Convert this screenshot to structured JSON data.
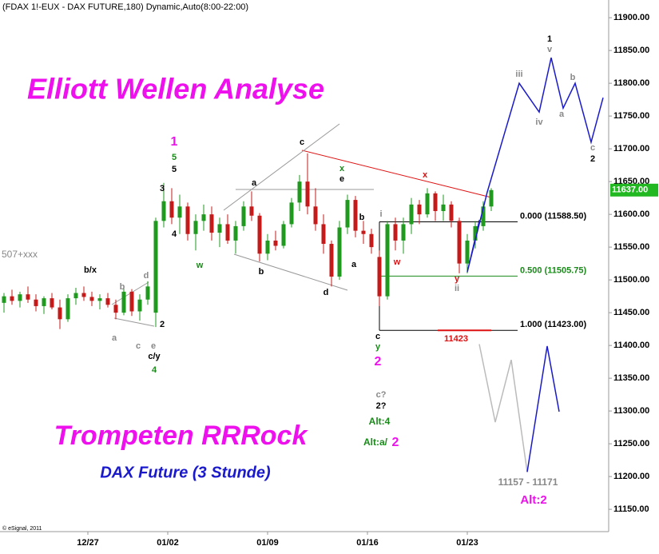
{
  "chart_data": {
    "type": "candlestick",
    "title": "(FDAX 1!-EUX - DAX FUTURE,180) Dynamic,Auto(8:00-22:00)",
    "headline": "Elliott Wellen Analyse",
    "footline": "Trompeten RRRock",
    "subtitle": "DAX Future (3 Stunde)",
    "copyright": "© eSignal, 2011",
    "side_note": "507+xxx",
    "up_color": "#1f9a1f",
    "down_color": "#c41a1a",
    "xlim": [
      0,
      152.4
    ],
    "ylim": [
      11116,
      11927
    ],
    "xticks": [
      {
        "value": 22,
        "label": "12/27"
      },
      {
        "value": 42,
        "label": "01/02"
      },
      {
        "value": 67,
        "label": "01/09"
      },
      {
        "value": 92,
        "label": "01/16"
      },
      {
        "value": 117,
        "label": "01/23"
      }
    ],
    "yticks": [
      {
        "value": 11150,
        "label": "11150.00"
      },
      {
        "value": 11200,
        "label": "11200.00"
      },
      {
        "value": 11250,
        "label": "11250.00"
      },
      {
        "value": 11300,
        "label": "11300.00"
      },
      {
        "value": 11350,
        "label": "11350.00"
      },
      {
        "value": 11400,
        "label": "11400.00"
      },
      {
        "value": 11450,
        "label": "11450.00"
      },
      {
        "value": 11500,
        "label": "11500.00"
      },
      {
        "value": 11550,
        "label": "11550.00"
      },
      {
        "value": 11600,
        "label": "11600.00"
      },
      {
        "value": 11650,
        "label": "11650.00"
      },
      {
        "value": 11700,
        "label": "11700.00"
      },
      {
        "value": 11750,
        "label": "11750.00"
      },
      {
        "value": 11800,
        "label": "11800.00"
      },
      {
        "value": 11850,
        "label": "11850.00"
      },
      {
        "value": 11900,
        "label": "11900.00"
      }
    ],
    "last": {
      "value": 11637,
      "label": "11637.00",
      "color": "#22b822"
    },
    "levels": [
      {
        "value": 11588.5,
        "label": "0.000 (11588.50)",
        "color": "#000000"
      },
      {
        "value": 11505.75,
        "label": "0.500 (11505.75)",
        "color": "#1a8a1a"
      },
      {
        "value": 11423,
        "label": "1.000 (11423.00)",
        "color": "#000000"
      }
    ],
    "target": {
      "value": 11423,
      "label": "11423",
      "color": "#dd1111"
    },
    "candles": [
      [
        1,
        11465,
        11480,
        11450,
        11475
      ],
      [
        3,
        11475,
        11485,
        11462,
        11468
      ],
      [
        5,
        11468,
        11482,
        11458,
        11478
      ],
      [
        7,
        11478,
        11490,
        11465,
        11470
      ],
      [
        9,
        11470,
        11478,
        11452,
        11460
      ],
      [
        11,
        11460,
        11475,
        11448,
        11472
      ],
      [
        13,
        11472,
        11480,
        11455,
        11458
      ],
      [
        15,
        11458,
        11470,
        11425,
        11440
      ],
      [
        17,
        11440,
        11478,
        11436,
        11472
      ],
      [
        19,
        11472,
        11488,
        11462,
        11480
      ],
      [
        21,
        11480,
        11490,
        11468,
        11474
      ],
      [
        23,
        11474,
        11482,
        11460,
        11468
      ],
      [
        25,
        11468,
        11478,
        11455,
        11472
      ],
      [
        27,
        11472,
        11480,
        11458,
        11462
      ],
      [
        29,
        11462,
        11470,
        11440,
        11450
      ],
      [
        31,
        11450,
        11488,
        11446,
        11482
      ],
      [
        33,
        11482,
        11486,
        11445,
        11452
      ],
      [
        35,
        11452,
        11478,
        11438,
        11470
      ],
      [
        37,
        11470,
        11498,
        11462,
        11490
      ],
      [
        39,
        11450,
        11595,
        11428,
        11590
      ],
      [
        41,
        11590,
        11648,
        11580,
        11620
      ],
      [
        43,
        11620,
        11640,
        11585,
        11595
      ],
      [
        45,
        11595,
        11630,
        11570,
        11612
      ],
      [
        47,
        11612,
        11618,
        11560,
        11570
      ],
      [
        49,
        11570,
        11600,
        11545,
        11590
      ],
      [
        51,
        11590,
        11615,
        11575,
        11600
      ],
      [
        53,
        11600,
        11612,
        11560,
        11572
      ],
      [
        55,
        11572,
        11595,
        11550,
        11585
      ],
      [
        57,
        11585,
        11600,
        11555,
        11560
      ],
      [
        59,
        11560,
        11590,
        11540,
        11582
      ],
      [
        61,
        11582,
        11620,
        11575,
        11612
      ],
      [
        63,
        11612,
        11635,
        11590,
        11598
      ],
      [
        65,
        11598,
        11602,
        11528,
        11540
      ],
      [
        67,
        11540,
        11570,
        11530,
        11560
      ],
      [
        69,
        11560,
        11575,
        11545,
        11552
      ],
      [
        71,
        11552,
        11590,
        11548,
        11585
      ],
      [
        73,
        11585,
        11625,
        11580,
        11618
      ],
      [
        75,
        11618,
        11660,
        11605,
        11650
      ],
      [
        77,
        11650,
        11693,
        11600,
        11612
      ],
      [
        79,
        11612,
        11640,
        11575,
        11585
      ],
      [
        81,
        11585,
        11600,
        11540,
        11555
      ],
      [
        83,
        11555,
        11560,
        11490,
        11505
      ],
      [
        85,
        11505,
        11590,
        11500,
        11580
      ],
      [
        87,
        11580,
        11630,
        11570,
        11622
      ],
      [
        89,
        11622,
        11628,
        11565,
        11575
      ],
      [
        91,
        11575,
        11590,
        11555,
        11570
      ],
      [
        93,
        11570,
        11578,
        11540,
        11550
      ],
      [
        95,
        11535,
        11545,
        11460,
        11475
      ],
      [
        97,
        11475,
        11590,
        11470,
        11585
      ],
      [
        99,
        11585,
        11595,
        11545,
        11560
      ],
      [
        101,
        11560,
        11595,
        11540,
        11585
      ],
      [
        103,
        11585,
        11625,
        11570,
        11615
      ],
      [
        105,
        11615,
        11622,
        11585,
        11600
      ],
      [
        107,
        11600,
        11640,
        11595,
        11632
      ],
      [
        109,
        11632,
        11635,
        11590,
        11605
      ],
      [
        111,
        11605,
        11630,
        11590,
        11615
      ],
      [
        113,
        11615,
        11620,
        11580,
        11590
      ],
      [
        115,
        11590,
        11595,
        11510,
        11525
      ],
      [
        117,
        11525,
        11570,
        11510,
        11560
      ],
      [
        119,
        11560,
        11590,
        11548,
        11582
      ],
      [
        121,
        11582,
        11620,
        11575,
        11612
      ],
      [
        123,
        11612,
        11640,
        11605,
        11637
      ]
    ],
    "projections": [
      {
        "color": "#1a1acc",
        "x": [
          117,
          122,
          130,
          135,
          138,
          141,
          144,
          148,
          151
        ],
        "values": [
          11512,
          11634,
          11800,
          11756,
          11839,
          11762,
          11800,
          11710,
          11778
        ]
      },
      {
        "color": "#bbbbbb",
        "x": [
          120,
          124,
          128,
          132
        ],
        "values": [
          11402,
          11283,
          11378,
          11207
        ]
      },
      {
        "color": "#1a1acc",
        "x": [
          132,
          137,
          140
        ],
        "values": [
          11207,
          11399,
          11299
        ]
      }
    ],
    "annotations": [
      {
        "text": "1",
        "color": "#ee11ee"
      },
      {
        "text": "5",
        "color": "#1a8a1a"
      },
      {
        "text": "5",
        "color": "#000000"
      },
      {
        "text": "3",
        "color": "#000000"
      },
      {
        "text": "4",
        "color": "#000000"
      },
      {
        "text": "w",
        "color": "#1a8a1a"
      },
      {
        "text": "b/x",
        "color": "#000000"
      },
      {
        "text": "b",
        "color": "#888888"
      },
      {
        "text": "d",
        "color": "#888888"
      },
      {
        "text": "a",
        "color": "#888888"
      },
      {
        "text": "c",
        "color": "#888888"
      },
      {
        "text": "e",
        "color": "#888888"
      },
      {
        "text": "2",
        "color": "#000000"
      },
      {
        "text": "c/y",
        "color": "#000000"
      },
      {
        "text": "4",
        "color": "#1a8a1a"
      },
      {
        "text": "a",
        "color": "#000000"
      },
      {
        "text": "b",
        "color": "#000000"
      },
      {
        "text": "c",
        "color": "#000000"
      },
      {
        "text": "d",
        "color": "#000000"
      },
      {
        "text": "x",
        "color": "#1a8a1a"
      },
      {
        "text": "e",
        "color": "#000000"
      },
      {
        "text": "b",
        "color": "#000000"
      },
      {
        "text": "a",
        "color": "#000000"
      },
      {
        "text": "i",
        "color": "#888888"
      },
      {
        "text": "w",
        "color": "#dd1111"
      },
      {
        "text": "x",
        "color": "#dd1111"
      },
      {
        "text": "y",
        "color": "#dd1111"
      },
      {
        "text": "ii",
        "color": "#888888"
      },
      {
        "text": "c",
        "color": "#000000"
      },
      {
        "text": "y",
        "color": "#1a8a1a"
      },
      {
        "text": "2",
        "color": "#ee11ee"
      },
      {
        "text": "c?",
        "color": "#888888"
      },
      {
        "text": "2?",
        "color": "#000000"
      },
      {
        "text": "Alt:4",
        "color": "#1a8a1a"
      },
      {
        "text": "Alt:a/",
        "color": "#1a8a1a"
      },
      {
        "text": "2",
        "color": "#ee11ee"
      },
      {
        "text": "1",
        "color": "#000000"
      },
      {
        "text": "v",
        "color": "#888888"
      },
      {
        "text": "iii",
        "color": "#888888"
      },
      {
        "text": "iv",
        "color": "#888888"
      },
      {
        "text": "a",
        "color": "#888888"
      },
      {
        "text": "b",
        "color": "#888888"
      },
      {
        "text": "c",
        "color": "#888888"
      },
      {
        "text": "2",
        "color": "#000000"
      },
      {
        "text": "11157 - 11171",
        "color": "#888888"
      },
      {
        "text": "Alt:2",
        "color": "#ee11ee"
      }
    ]
  }
}
